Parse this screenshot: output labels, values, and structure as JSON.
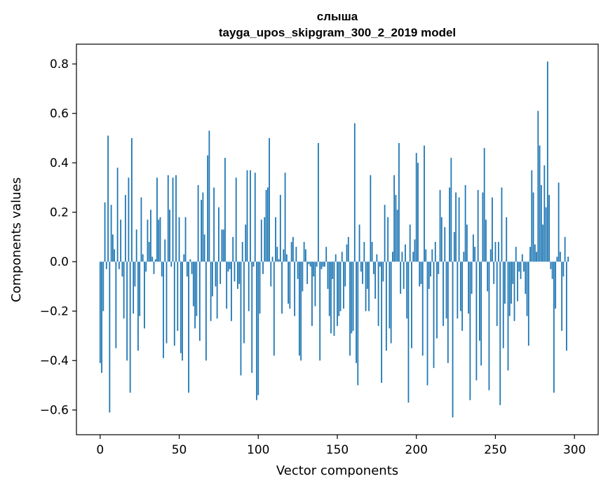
{
  "chart_data": {
    "type": "bar",
    "title": "слыша",
    "subtitle": "tayga_upos_skipgram_300_2_2019 model",
    "xlabel": "Vector components",
    "ylabel": "Components values",
    "xlim": [
      -15,
      315
    ],
    "ylim": [
      -0.7,
      0.88
    ],
    "x_ticks": [
      0,
      50,
      100,
      150,
      200,
      250,
      300
    ],
    "y_ticks": [
      -0.6,
      -0.4,
      -0.2,
      0.0,
      0.2,
      0.4,
      0.6,
      0.8
    ],
    "x_tick_labels": [
      "0",
      "50",
      "100",
      "150",
      "200",
      "250",
      "300"
    ],
    "y_tick_labels": [
      "−0.6",
      "−0.4",
      "−0.2",
      "0.0",
      "0.2",
      "0.4",
      "0.6",
      "0.8"
    ],
    "bar_color": "#1f77b4",
    "grid": false,
    "values": [
      -0.41,
      -0.45,
      -0.2,
      0.24,
      -0.03,
      0.51,
      -0.61,
      0.23,
      0.11,
      0.05,
      -0.35,
      0.38,
      -0.03,
      0.17,
      -0.06,
      -0.23,
      0.27,
      -0.4,
      0.34,
      -0.53,
      0.5,
      -0.21,
      -0.1,
      0.13,
      -0.36,
      -0.22,
      0.26,
      0.03,
      -0.27,
      -0.04,
      0.17,
      0.08,
      0.21,
      0.02,
      -0.05,
      0.01,
      0.34,
      0.17,
      0.18,
      -0.06,
      -0.39,
      0.09,
      -0.33,
      0.35,
      0.21,
      -0.02,
      0.34,
      -0.34,
      0.35,
      -0.28,
      0.18,
      -0.37,
      -0.4,
      0.03,
      0.18,
      -0.06,
      -0.53,
      0.01,
      -0.05,
      -0.18,
      -0.27,
      -0.22,
      0.31,
      -0.32,
      0.25,
      0.28,
      0.11,
      -0.4,
      0.43,
      0.53,
      -0.24,
      -0.14,
      0.3,
      -0.1,
      -0.23,
      0.22,
      -0.09,
      0.13,
      0.13,
      0.42,
      -0.19,
      -0.04,
      -0.03,
      -0.24,
      0.1,
      -0.08,
      0.34,
      -0.11,
      -0.09,
      -0.46,
      0.08,
      -0.33,
      0.15,
      0.37,
      -0.2,
      0.37,
      -0.45,
      -0.02,
      0.36,
      -0.56,
      -0.54,
      -0.21,
      0.17,
      -0.05,
      0.18,
      0.29,
      0.3,
      0.5,
      -0.1,
      0.02,
      -0.38,
      0.18,
      0.06,
      0.01,
      0.27,
      -0.21,
      0.05,
      0.36,
      0.03,
      -0.17,
      -0.19,
      0.08,
      0.1,
      -0.22,
      0.06,
      -0.07,
      -0.38,
      -0.4,
      -0.12,
      0.08,
      0.05,
      -0.09,
      -0.01,
      -0.02,
      -0.26,
      -0.06,
      -0.18,
      -0.02,
      0.48,
      -0.4,
      -0.03,
      -0.02,
      -0.02,
      0.06,
      -0.11,
      -0.22,
      -0.29,
      -0.07,
      -0.3,
      0.03,
      -0.26,
      -0.22,
      -0.2,
      0.04,
      -0.19,
      -0.1,
      0.07,
      0.1,
      -0.38,
      -0.29,
      -0.28,
      0.56,
      -0.41,
      -0.5,
      0.15,
      -0.04,
      -0.09,
      0.08,
      -0.2,
      -0.11,
      -0.2,
      0.35,
      0.08,
      -0.05,
      -0.15,
      0.03,
      -0.26,
      -0.02,
      -0.49,
      -0.08,
      0.23,
      -0.36,
      0.18,
      -0.27,
      -0.33,
      0.04,
      0.35,
      0.27,
      0.21,
      0.48,
      -0.13,
      0.04,
      -0.11,
      0.07,
      -0.23,
      -0.57,
      0.15,
      -0.35,
      0.04,
      0.09,
      0.44,
      0.4,
      -0.1,
      -0.09,
      -0.38,
      0.47,
      0.05,
      -0.5,
      -0.11,
      -0.06,
      0.05,
      -0.43,
      0.08,
      -0.31,
      -0.05,
      0.29,
      0.18,
      -0.26,
      0.14,
      -0.23,
      -0.41,
      0.3,
      0.42,
      -0.63,
      0.12,
      0.28,
      -0.23,
      0.26,
      -0.2,
      -0.28,
      0.04,
      0.31,
      0.15,
      -0.21,
      -0.56,
      -0.13,
      0.11,
      0.06,
      -0.48,
      0.29,
      -0.32,
      -0.42,
      0.28,
      0.46,
      0.17,
      -0.12,
      -0.52,
      0.05,
      0.26,
      -0.09,
      0.08,
      -0.26,
      0.08,
      -0.58,
      0.3,
      -0.35,
      -0.17,
      0.18,
      -0.44,
      -0.22,
      -0.17,
      -0.09,
      -0.24,
      0.06,
      -0.16,
      -0.04,
      -0.07,
      0.03,
      -0.04,
      -0.13,
      -0.22,
      -0.34,
      0.06,
      0.37,
      0.28,
      0.07,
      0.04,
      0.61,
      0.47,
      0.31,
      0.15,
      0.39,
      0.22,
      0.81,
      0.27,
      -0.03,
      -0.07,
      -0.53,
      -0.19,
      0.02,
      0.32,
      0.04,
      -0.28,
      -0.06,
      0.1,
      -0.36,
      0.02
    ]
  }
}
